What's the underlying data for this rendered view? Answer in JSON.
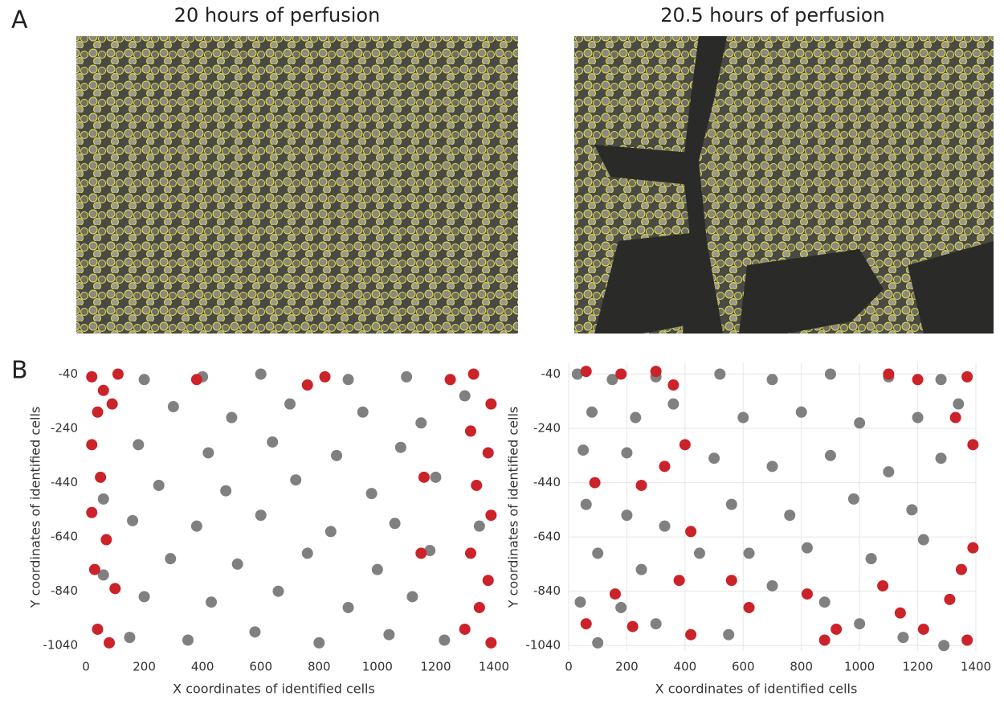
{
  "panel_a": {
    "label": "A",
    "titles": [
      "20 hours of perfusion",
      "20.5 hours of perfusion"
    ]
  },
  "panel_b_label": "B",
  "chart_data": [
    {
      "type": "scatter",
      "x_label": "X coordinates of identified cells",
      "y_label": "Y coordinates of identified cells",
      "xlim": [
        0,
        1400
      ],
      "ylim": [
        -1060,
        0
      ],
      "xticks": [
        0,
        200,
        400,
        600,
        800,
        1000,
        1200,
        1400
      ],
      "yticks": [
        -40,
        -240,
        -440,
        -640,
        -840,
        -1040
      ],
      "grid": false,
      "series": [
        {
          "color": "#808080",
          "x": [
            200,
            400,
            600,
            900,
            1100,
            300,
            500,
            700,
            950,
            1150,
            180,
            420,
            640,
            860,
            1080,
            250,
            480,
            720,
            980,
            1200,
            160,
            380,
            600,
            840,
            1060,
            290,
            520,
            760,
            1000,
            1180,
            200,
            430,
            660,
            900,
            1120,
            150,
            350,
            580,
            800,
            1040,
            1230,
            60,
            60,
            1300,
            1350
          ],
          "y": [
            -60,
            -50,
            -40,
            -60,
            -50,
            -160,
            -200,
            -150,
            -180,
            -220,
            -300,
            -330,
            -290,
            -340,
            -310,
            -450,
            -470,
            -430,
            -480,
            -420,
            -580,
            -600,
            -560,
            -620,
            -590,
            -720,
            -740,
            -700,
            -760,
            -690,
            -860,
            -880,
            -840,
            -900,
            -860,
            -1010,
            -1020,
            -990,
            -1030,
            -1000,
            -1020,
            -500,
            -780,
            -120,
            -600
          ]
        },
        {
          "color": "#cc2229",
          "x": [
            20,
            60,
            110,
            40,
            90,
            20,
            50,
            20,
            70,
            30,
            100,
            40,
            80,
            380,
            760,
            820,
            1250,
            1330,
            1390,
            1320,
            1380,
            1340,
            1390,
            1320,
            1380,
            1350,
            1300,
            1390,
            1160,
            1150
          ],
          "y": [
            -50,
            -100,
            -40,
            -180,
            -150,
            -300,
            -420,
            -550,
            -650,
            -760,
            -830,
            -980,
            -1030,
            -60,
            -80,
            -50,
            -60,
            -40,
            -150,
            -250,
            -330,
            -450,
            -560,
            -700,
            -800,
            -900,
            -980,
            -1030,
            -420,
            -700
          ]
        }
      ]
    },
    {
      "type": "scatter",
      "x_label": "X coordinates of identified cells",
      "y_label": "Y coordinates of identified cells",
      "xlim": [
        0,
        1400
      ],
      "ylim": [
        -1060,
        0
      ],
      "xticks": [
        0,
        200,
        400,
        600,
        800,
        1000,
        1200,
        1400
      ],
      "yticks": [
        -40,
        -240,
        -440,
        -640,
        -840,
        -1040
      ],
      "grid": true,
      "series": [
        {
          "color": "#808080",
          "x": [
            30,
            150,
            300,
            80,
            230,
            360,
            50,
            200,
            520,
            700,
            900,
            1100,
            1280,
            600,
            800,
            1000,
            1200,
            500,
            700,
            900,
            1100,
            1280,
            560,
            760,
            980,
            1180,
            620,
            820,
            1040,
            1220,
            700,
            880,
            60,
            200,
            330,
            100,
            250,
            40,
            180,
            300,
            100,
            550,
            1000,
            1150,
            1290,
            1340,
            450
          ],
          "y": [
            -40,
            -60,
            -50,
            -180,
            -200,
            -150,
            -320,
            -330,
            -40,
            -60,
            -40,
            -50,
            -60,
            -200,
            -180,
            -220,
            -200,
            -350,
            -380,
            -340,
            -400,
            -350,
            -520,
            -560,
            -500,
            -540,
            -700,
            -680,
            -720,
            -650,
            -820,
            -880,
            -520,
            -560,
            -600,
            -700,
            -760,
            -880,
            -900,
            -960,
            -1030,
            -1000,
            -960,
            -1010,
            -1040,
            -150,
            -700
          ]
        },
        {
          "color": "#cc2229",
          "x": [
            60,
            180,
            300,
            360,
            1100,
            1200,
            1370,
            1390,
            1330,
            400,
            330,
            90,
            250,
            420,
            380,
            160,
            60,
            220,
            420,
            560,
            620,
            820,
            920,
            1080,
            1140,
            1220,
            1350,
            1390,
            1370,
            880,
            1310
          ],
          "y": [
            -30,
            -40,
            -30,
            -80,
            -40,
            -60,
            -50,
            -300,
            -200,
            -300,
            -380,
            -440,
            -450,
            -620,
            -800,
            -850,
            -960,
            -970,
            -1000,
            -800,
            -900,
            -850,
            -980,
            -820,
            -920,
            -980,
            -760,
            -680,
            -1020,
            -1020,
            -870
          ]
        }
      ]
    }
  ]
}
